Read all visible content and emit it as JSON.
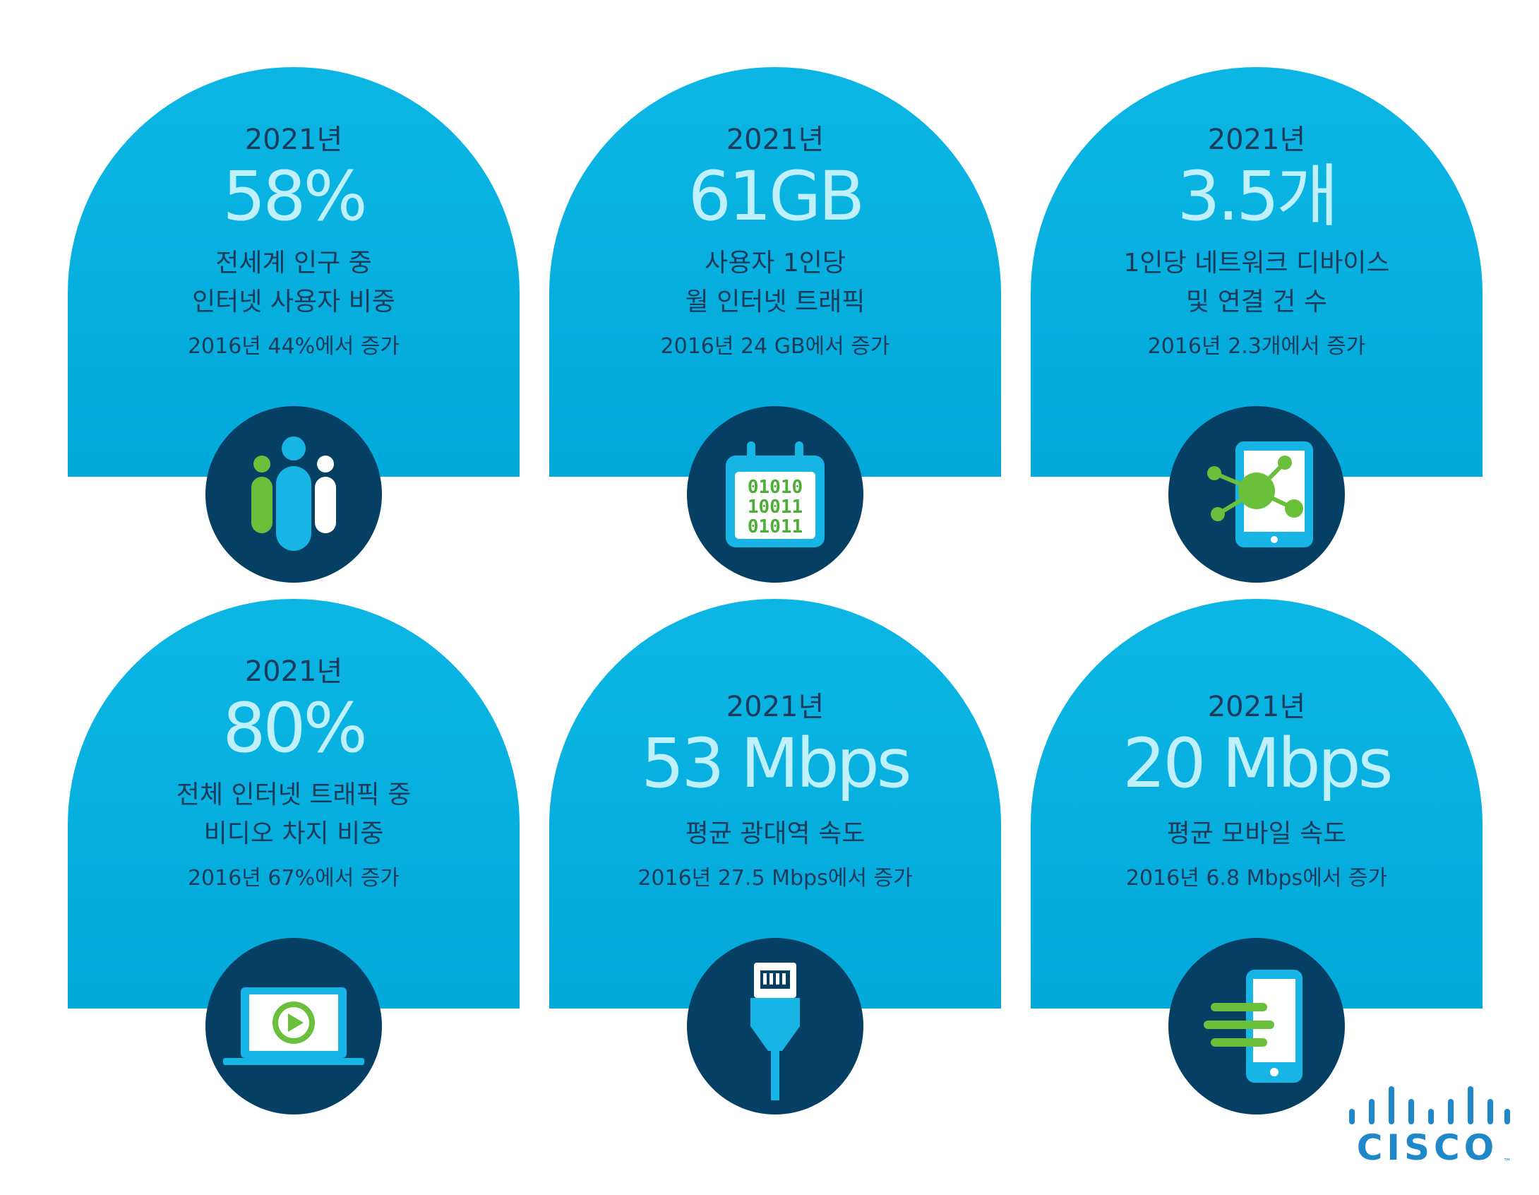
{
  "colors": {
    "arch": "#02a9da",
    "circle": "#063f64",
    "highlight": "#bff0fb",
    "text": "#1d3a5a",
    "green": "#6abf3b",
    "cisco_blue": "#1e88c9"
  },
  "cards": [
    {
      "year": "2021년",
      "value": "58%",
      "desc1": "전세계 인구 중",
      "desc2": "인터넷 사용자 비중",
      "since": "2016년 44%에서 증가",
      "icon": "people-icon"
    },
    {
      "year": "2021년",
      "value": "61GB",
      "desc1": "사용자 1인당",
      "desc2": "월 인터넷 트래픽",
      "since": "2016년 24 GB에서 증가",
      "icon": "binary-calendar-icon"
    },
    {
      "year": "2021년",
      "value": "3.5개",
      "desc1": "1인당 네트워크 디바이스",
      "desc2": "및 연결 건 수",
      "since": "2016년 2.3개에서 증가",
      "icon": "tablet-network-icon"
    },
    {
      "year": "2021년",
      "value": "80%",
      "desc1": "전체 인터넷 트래픽 중",
      "desc2": "비디오 차지 비중",
      "since": "2016년 67%에서 증가",
      "icon": "laptop-video-icon"
    },
    {
      "year": "2021년",
      "value": "53 Mbps",
      "desc1": "평균 광대역 속도",
      "since": "2016년 27.5 Mbps에서 증가",
      "icon": "ethernet-cable-icon"
    },
    {
      "year": "2021년",
      "value": "20 Mbps",
      "desc1": "평균 모바일 속도",
      "since": "2016년 6.8 Mbps에서 증가",
      "icon": "mobile-speed-icon"
    }
  ],
  "binary": {
    "row1": "01010",
    "row2": "10011",
    "row3": "01011"
  },
  "brand": {
    "name": "CISCO",
    "tm": "™"
  }
}
